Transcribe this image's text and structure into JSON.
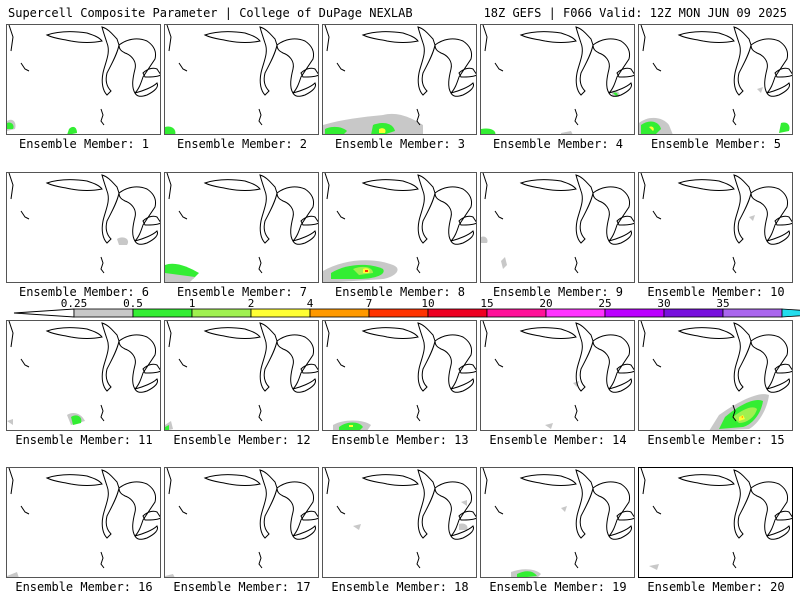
{
  "header": {
    "title_left": "Supercell Composite Parameter | College of DuPage NEXLAB",
    "title_right": "18Z GEFS | F066 Valid: 12Z MON JUN 09 2025"
  },
  "panels": [
    {
      "label": "Ensemble Member: 1"
    },
    {
      "label": "Ensemble Member: 2"
    },
    {
      "label": "Ensemble Member: 3"
    },
    {
      "label": "Ensemble Member: 4"
    },
    {
      "label": "Ensemble Member: 5"
    },
    {
      "label": "Ensemble Member: 6"
    },
    {
      "label": "Ensemble Member: 7"
    },
    {
      "label": "Ensemble Member: 8"
    },
    {
      "label": "Ensemble Member: 9"
    },
    {
      "label": "Ensemble Member: 10"
    },
    {
      "label": "Ensemble Member: 11"
    },
    {
      "label": "Ensemble Member: 12"
    },
    {
      "label": "Ensemble Member: 13"
    },
    {
      "label": "Ensemble Member: 14"
    },
    {
      "label": "Ensemble Member: 15"
    },
    {
      "label": "Ensemble Member: 16"
    },
    {
      "label": "Ensemble Member: 17"
    },
    {
      "label": "Ensemble Member: 18"
    },
    {
      "label": "Ensemble Member: 19"
    },
    {
      "label": "Ensemble Member: 20"
    }
  ],
  "colorbar": {
    "labels": [
      "0.25",
      "0.5",
      "1",
      "2",
      "4",
      "7",
      "10",
      "15",
      "20",
      "25",
      "30",
      "35"
    ],
    "colors": [
      "#c8c8c8",
      "#33ee33",
      "#a0f050",
      "#ffff33",
      "#ff9900",
      "#ff3300",
      "#ee0022",
      "#ff1199",
      "#ff33ff",
      "#bb00ff",
      "#7711dd",
      "#aa66ee",
      "#22ddee"
    ]
  }
}
